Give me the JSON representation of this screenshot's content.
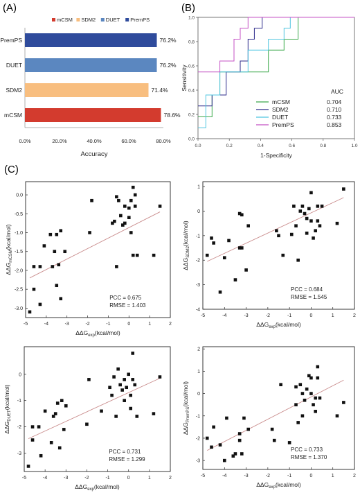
{
  "panels": {
    "a_label": "(A)",
    "b_label": "(B)",
    "c_label": "(C)"
  },
  "chart_data": [
    {
      "panel": "(A)",
      "type": "bar",
      "orientation": "horizontal",
      "categories": [
        "PremPS",
        "DUET",
        "SDM2",
        "mCSM"
      ],
      "values": [
        76.2,
        76.2,
        71.4,
        78.6
      ],
      "value_labels": [
        "76.2%",
        "76.2%",
        "71.4%",
        "78.6%"
      ],
      "colors": [
        "#2f4b9c",
        "#5b87c0",
        "#f8be7f",
        "#d33b2e"
      ],
      "legend": [
        "mCSM",
        "SDM2",
        "DUET",
        "PremPS"
      ],
      "legend_colors": [
        "#d33b2e",
        "#f8be7f",
        "#5b87c0",
        "#2f4b9c"
      ],
      "legend_placement": "top",
      "xlabel": "Accuracy",
      "xlim": [
        0,
        80
      ],
      "xticks": [
        "0.0%",
        "20.0%",
        "40.0%",
        "60.0%",
        "80.0%"
      ],
      "grid": false
    },
    {
      "panel": "(B)",
      "type": "line",
      "subtype": "roc-step",
      "xlabel": "1-Specificity",
      "ylabel": "Sensitivity",
      "xlim": [
        0,
        1
      ],
      "ylim": [
        0,
        1
      ],
      "xticks": [
        "0.0",
        "0.2",
        "0.4",
        "0.6",
        "0.8",
        "1.0"
      ],
      "yticks": [
        "0.0",
        "0.2",
        "0.4",
        "0.6",
        "0.8",
        "1.0"
      ],
      "legend_title": "AUC",
      "legend_placement": "bottom-right",
      "grid": false,
      "series": [
        {
          "name": "mCSM",
          "auc": "0.704",
          "color": "#3aa84a",
          "points": [
            [
              0,
              0.18
            ],
            [
              0.09,
              0.18
            ],
            [
              0.09,
              0.36
            ],
            [
              0.14,
              0.36
            ],
            [
              0.14,
              0.55
            ],
            [
              0.45,
              0.55
            ],
            [
              0.45,
              0.73
            ],
            [
              0.55,
              0.73
            ],
            [
              0.55,
              0.82
            ],
            [
              0.64,
              0.82
            ],
            [
              0.64,
              1
            ],
            [
              1,
              1
            ]
          ]
        },
        {
          "name": "SDM2",
          "auc": "0.710",
          "color": "#2c2a8a",
          "points": [
            [
              0,
              0.27
            ],
            [
              0.09,
              0.27
            ],
            [
              0.09,
              0.36
            ],
            [
              0.18,
              0.36
            ],
            [
              0.18,
              0.55
            ],
            [
              0.27,
              0.55
            ],
            [
              0.27,
              0.64
            ],
            [
              0.32,
              0.64
            ],
            [
              0.32,
              0.82
            ],
            [
              0.36,
              0.82
            ],
            [
              0.36,
              0.91
            ],
            [
              0.41,
              0.91
            ],
            [
              0.41,
              1
            ],
            [
              1,
              1
            ]
          ]
        },
        {
          "name": "DUET",
          "auc": "0.733",
          "color": "#4fc5e0",
          "points": [
            [
              0,
              0.09
            ],
            [
              0.05,
              0.09
            ],
            [
              0.05,
              0.36
            ],
            [
              0.14,
              0.36
            ],
            [
              0.14,
              0.55
            ],
            [
              0.32,
              0.55
            ],
            [
              0.32,
              0.73
            ],
            [
              0.45,
              0.73
            ],
            [
              0.45,
              0.82
            ],
            [
              0.55,
              0.82
            ],
            [
              0.55,
              0.91
            ],
            [
              0.59,
              0.91
            ],
            [
              0.59,
              1
            ],
            [
              1,
              1
            ]
          ]
        },
        {
          "name": "PremPS",
          "auc": "0.853",
          "color": "#c452c4",
          "points": [
            [
              0,
              0.55
            ],
            [
              0.14,
              0.55
            ],
            [
              0.14,
              0.64
            ],
            [
              0.23,
              0.64
            ],
            [
              0.23,
              0.82
            ],
            [
              0.27,
              0.82
            ],
            [
              0.27,
              0.91
            ],
            [
              0.32,
              0.91
            ],
            [
              0.32,
              1
            ],
            [
              1,
              1
            ]
          ]
        }
      ]
    },
    {
      "panel": "(C)",
      "type": "scatter",
      "xlabel_base": "ΔΔG",
      "xlabel_sub": "exp",
      "xlabel_unit": "(kcal/mol)",
      "ylabel_base": "ΔΔG",
      "ylabel_sub": "mCSM",
      "ylabel_unit": "(kcal/mol)",
      "xlim": [
        -5,
        2
      ],
      "ylim": [
        -3.25,
        0.35
      ],
      "xticks": [
        -5,
        -4,
        -3,
        -2,
        -1,
        0,
        1,
        2
      ],
      "yticks": [
        -3.0,
        -2.5,
        -2.0,
        -1.5,
        -1.0,
        -0.5,
        0.0
      ],
      "ytick_labels": [
        "-3.0",
        "-2.5",
        "-2.0",
        "-1.5",
        "-1.0",
        "-0.5",
        "0.0"
      ],
      "stats": [
        "PCC = 0.675",
        "RMSE = 1.403"
      ],
      "fit_line": {
        "x": [
          -4.8,
          1.5
        ],
        "y": [
          -2.2,
          -0.45
        ]
      },
      "points": [
        [
          -4.8,
          -3.1
        ],
        [
          -4.6,
          -1.9
        ],
        [
          -4.6,
          -2.5
        ],
        [
          -4.3,
          -1.9
        ],
        [
          -4.3,
          -2.9
        ],
        [
          -4.1,
          -1.35
        ],
        [
          -3.8,
          -1.05
        ],
        [
          -3.7,
          -1.9
        ],
        [
          -3.6,
          -1.5
        ],
        [
          -3.5,
          -1.05
        ],
        [
          -3.5,
          -2.4
        ],
        [
          -3.4,
          -1.85
        ],
        [
          -3.3,
          -0.95
        ],
        [
          -3.3,
          -2.75
        ],
        [
          -3.1,
          -1.5
        ],
        [
          -1.8,
          -0.15
        ],
        [
          -1.9,
          -1.0
        ],
        [
          -0.8,
          -0.75
        ],
        [
          -0.7,
          -0.7
        ],
        [
          -0.6,
          -0.05
        ],
        [
          -0.6,
          -1.9
        ],
        [
          -0.5,
          -0.15
        ],
        [
          -0.4,
          -0.55
        ],
        [
          -0.3,
          -0.8
        ],
        [
          -0.2,
          -0.3
        ],
        [
          -0.2,
          -0.75
        ],
        [
          0.0,
          -0.35
        ],
        [
          0.0,
          -0.6
        ],
        [
          0.1,
          -0.15
        ],
        [
          0.1,
          -1.0
        ],
        [
          0.2,
          0.2
        ],
        [
          0.2,
          -1.6
        ],
        [
          0.3,
          0.0
        ],
        [
          0.3,
          -0.3
        ],
        [
          0.4,
          -1.6
        ],
        [
          1.2,
          -1.6
        ],
        [
          1.5,
          -0.3
        ]
      ]
    },
    {
      "panel": "(C)",
      "type": "scatter",
      "xlabel_base": "ΔΔG",
      "xlabel_sub": "exp",
      "xlabel_unit": "(kcal/mol)",
      "ylabel_base": "ΔΔG",
      "ylabel_sub": "SDM2",
      "ylabel_unit": "(kcal/mol)",
      "xlim": [
        -5,
        2
      ],
      "ylim": [
        -4,
        1.2
      ],
      "xticks": [
        -5,
        -4,
        -3,
        -2,
        -1,
        0,
        1,
        2
      ],
      "yticks": [
        -4,
        -3,
        -2,
        -1,
        0,
        1
      ],
      "ytick_labels": [
        "-4",
        "-3",
        "-2",
        "-1",
        "0",
        "1"
      ],
      "stats": [
        "PCC = 0.684",
        "RMSE = 1.545"
      ],
      "fit_line": {
        "x": [
          -4.8,
          1.5
        ],
        "y": [
          -2.05,
          0.55
        ]
      },
      "points": [
        [
          -4.8,
          -1.8
        ],
        [
          -4.6,
          -1.1
        ],
        [
          -4.5,
          -1.3
        ],
        [
          -4.2,
          -3.3
        ],
        [
          -4.0,
          -1.9
        ],
        [
          -3.8,
          -1.2
        ],
        [
          -3.5,
          -2.8
        ],
        [
          -3.3,
          -0.1
        ],
        [
          -3.2,
          -0.15
        ],
        [
          -3.2,
          -1.5
        ],
        [
          -3.3,
          -1.5
        ],
        [
          -3.0,
          -2.4
        ],
        [
          -2.9,
          -0.6
        ],
        [
          -1.6,
          -0.8
        ],
        [
          -1.5,
          -1.0
        ],
        [
          -1.3,
          -1.8
        ],
        [
          -0.9,
          -0.95
        ],
        [
          -0.8,
          0.2
        ],
        [
          -0.7,
          -0.6
        ],
        [
          -0.6,
          -2.0
        ],
        [
          -0.5,
          0.0
        ],
        [
          -0.4,
          0.2
        ],
        [
          -0.3,
          -0.1
        ],
        [
          -0.2,
          -0.3
        ],
        [
          -0.2,
          -0.9
        ],
        [
          -0.1,
          0.1
        ],
        [
          0.0,
          -0.4
        ],
        [
          0.0,
          0.75
        ],
        [
          0.1,
          -1.1
        ],
        [
          0.2,
          -0.8
        ],
        [
          0.3,
          0.2
        ],
        [
          0.3,
          -0.4
        ],
        [
          0.4,
          -0.6
        ],
        [
          0.5,
          0.2
        ],
        [
          1.2,
          -0.5
        ],
        [
          1.5,
          0.9
        ]
      ]
    },
    {
      "panel": "(C)",
      "type": "scatter",
      "xlabel_base": "ΔΔG",
      "xlabel_sub": "exp",
      "xlabel_unit": "(kcal/mol)",
      "ylabel_base": "ΔΔG",
      "ylabel_sub": "DUET",
      "ylabel_unit": "(kcal/mol)",
      "xlim": [
        -5,
        2
      ],
      "ylim": [
        -3.7,
        1.05
      ],
      "xticks": [
        -5,
        -4,
        -3,
        -2,
        -1,
        0,
        1,
        2
      ],
      "yticks": [
        -3,
        -2,
        -1,
        0
      ],
      "ytick_labels": [
        "-3",
        "-2",
        "-1",
        "0"
      ],
      "stats": [
        "PCC = 0.731",
        "RMSE = 1.299"
      ],
      "fit_line": {
        "x": [
          -4.8,
          1.5
        ],
        "y": [
          -2.45,
          -0.15
        ]
      },
      "points": [
        [
          -4.8,
          -3.5
        ],
        [
          -4.6,
          -2.0
        ],
        [
          -4.6,
          -2.5
        ],
        [
          -4.3,
          -2.0
        ],
        [
          -4.2,
          -3.1
        ],
        [
          -4.0,
          -1.4
        ],
        [
          -3.7,
          -2.6
        ],
        [
          -3.6,
          -1.6
        ],
        [
          -3.5,
          -1.5
        ],
        [
          -3.4,
          -1.1
        ],
        [
          -3.3,
          -2.8
        ],
        [
          -3.2,
          -1.0
        ],
        [
          -3.1,
          -2.1
        ],
        [
          -3.0,
          -1.2
        ],
        [
          -1.9,
          -0.2
        ],
        [
          -2.0,
          -1.9
        ],
        [
          -1.3,
          -1.4
        ],
        [
          -0.9,
          -0.5
        ],
        [
          -0.8,
          -0.8
        ],
        [
          -0.7,
          -0.1
        ],
        [
          -0.6,
          -1.6
        ],
        [
          -0.5,
          0.2
        ],
        [
          -0.4,
          -0.4
        ],
        [
          -0.3,
          -0.6
        ],
        [
          -0.2,
          -0.2
        ],
        [
          -0.2,
          -1.0
        ],
        [
          -0.1,
          -0.5
        ],
        [
          0.0,
          0.0
        ],
        [
          0.1,
          -0.8
        ],
        [
          0.1,
          -1.3
        ],
        [
          0.2,
          0.8
        ],
        [
          0.2,
          -0.2
        ],
        [
          0.3,
          -0.4
        ],
        [
          0.4,
          -1.6
        ],
        [
          1.2,
          -1.5
        ],
        [
          1.5,
          -0.1
        ]
      ]
    },
    {
      "panel": "(C)",
      "type": "scatter",
      "xlabel_base": "ΔΔG",
      "xlabel_sub": "exp",
      "xlabel_unit": "(kcal/mol)",
      "ylabel_base": "ΔΔG",
      "ylabel_sub": "PremPS",
      "ylabel_unit": "(kcal/mol)",
      "xlim": [
        -5,
        2
      ],
      "ylim": [
        -3.4,
        2.1
      ],
      "xticks": [
        -5,
        -4,
        -3,
        -2,
        -1,
        0,
        1,
        2
      ],
      "yticks": [
        -3,
        -2,
        -1,
        0,
        1,
        2
      ],
      "ytick_labels": [
        "-3",
        "-2",
        "-1",
        "0",
        "1",
        "2"
      ],
      "stats": [
        "PCC = 0.733",
        "RMSE = 1.370"
      ],
      "fit_line": {
        "x": [
          -4.8,
          1.5
        ],
        "y": [
          -2.55,
          0.6
        ]
      },
      "points": [
        [
          -4.8,
          -2.0
        ],
        [
          -4.6,
          -2.4
        ],
        [
          -4.5,
          -1.5
        ],
        [
          -4.2,
          -2.3
        ],
        [
          -4.0,
          -3.0
        ],
        [
          -3.9,
          -1.1
        ],
        [
          -3.6,
          -2.8
        ],
        [
          -3.5,
          -2.7
        ],
        [
          -3.3,
          -1.8
        ],
        [
          -3.3,
          -2.1
        ],
        [
          -3.2,
          -2.7
        ],
        [
          -3.1,
          -1.1
        ],
        [
          -2.9,
          -1.6
        ],
        [
          -1.8,
          -1.6
        ],
        [
          -1.7,
          -2.1
        ],
        [
          -1.4,
          0.4
        ],
        [
          -1.0,
          -2.2
        ],
        [
          -0.7,
          0.3
        ],
        [
          -0.7,
          -0.5
        ],
        [
          -0.6,
          -1.3
        ],
        [
          -0.5,
          0.4
        ],
        [
          -0.4,
          0.0
        ],
        [
          -0.4,
          -1.0
        ],
        [
          -0.3,
          -0.3
        ],
        [
          -0.2,
          0.2
        ],
        [
          -0.1,
          0.8
        ],
        [
          0.0,
          0.0
        ],
        [
          0.0,
          0.7
        ],
        [
          0.1,
          -0.5
        ],
        [
          0.2,
          -0.2
        ],
        [
          0.2,
          -0.8
        ],
        [
          0.3,
          1.2
        ],
        [
          0.3,
          0.7
        ],
        [
          0.4,
          -0.2
        ],
        [
          1.2,
          -1.0
        ],
        [
          1.5,
          -0.4
        ]
      ]
    }
  ]
}
